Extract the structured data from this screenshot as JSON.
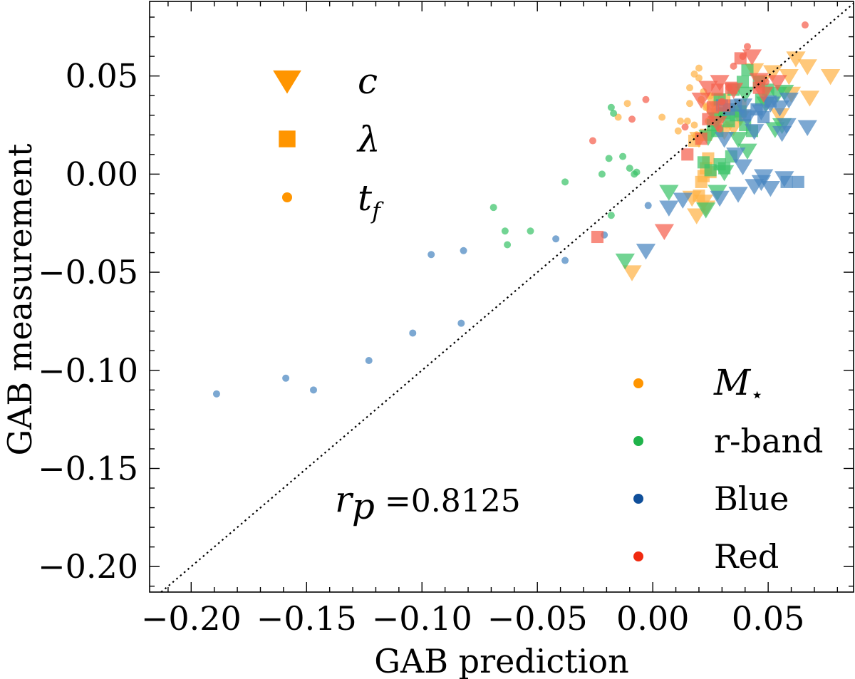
{
  "chart_data": {
    "type": "scatter",
    "title": "",
    "xlabel": "GAB prediction",
    "ylabel": "GAB measurement",
    "xlim": [
      -0.218,
      0.087
    ],
    "ylim": [
      -0.213,
      0.088
    ],
    "xticks": [
      -0.2,
      -0.15,
      -0.1,
      -0.05,
      0.0,
      0.05
    ],
    "yticks": [
      -0.2,
      -0.15,
      -0.1,
      -0.05,
      0.0,
      0.05
    ],
    "xtick_labels": [
      "−0.20",
      "−0.15",
      "−0.10",
      "−0.05",
      "0.00",
      "0.05"
    ],
    "ytick_labels": [
      "−0.20",
      "−0.15",
      "−0.10",
      "−0.05",
      "0.00",
      "0.05"
    ],
    "grid": false,
    "reference_line": {
      "type": "identity",
      "style": "dotted",
      "color": "#000000"
    },
    "annotation": {
      "prefix": "r",
      "subscript": "p",
      "text": " =0.8125",
      "value": 0.8125
    },
    "marker_legend": {
      "placement": "top-left",
      "entries": [
        {
          "marker": "triangle-down",
          "label": "c",
          "subscript": ""
        },
        {
          "marker": "square",
          "label": "λ",
          "subscript": ""
        },
        {
          "marker": "circle",
          "label": "t",
          "subscript": "f"
        }
      ]
    },
    "color_legend": {
      "placement": "bottom-right",
      "entries": [
        {
          "name": "mstar",
          "label": "M",
          "subscript": "⋆",
          "math": true,
          "color": "#ff9500"
        },
        {
          "name": "rband",
          "label": "r-band",
          "subscript": "",
          "math": false,
          "color": "#1fb34a"
        },
        {
          "name": "blue",
          "label": "Blue",
          "subscript": "",
          "math": false,
          "color": "#0f4f9a"
        },
        {
          "name": "red",
          "label": "Red",
          "subscript": "",
          "math": false,
          "color": "#f02a10"
        }
      ]
    },
    "colors": {
      "mstar": "#ffb347",
      "rband": "#3cc46a",
      "blue": "#4a86c0",
      "red": "#f5604d",
      "legend_marker": "#ff9500"
    },
    "series": [
      {
        "name": "M⋆ (t_f)",
        "marker": "circle",
        "color_key": "mstar",
        "points": [
          [
            -0.011,
            0.036
          ],
          [
            -0.015,
            0.029
          ],
          [
            0.004,
            0.029
          ],
          [
            0.016,
            0.036
          ],
          [
            0.018,
            0.051
          ],
          [
            0.02,
            0.054
          ],
          [
            0.022,
            0.042
          ],
          [
            0.027,
            0.036
          ],
          [
            0.024,
            0.027
          ],
          [
            0.018,
            0.025
          ],
          [
            0.015,
            0.027
          ],
          [
            0.011,
            0.022
          ],
          [
            0.029,
            0.031
          ],
          [
            0.028,
            0.033
          ],
          [
            0.025,
            0.04
          ],
          [
            0.03,
            0.029
          ],
          [
            0.016,
            0.044
          ],
          [
            0.02,
            0.049
          ],
          [
            0.012,
            0.027
          ],
          [
            0.034,
            0.032
          ],
          [
            0.032,
            0.025
          ],
          [
            0.021,
            0.038
          ],
          [
            0.023,
            0.034
          ],
          [
            0.019,
            0.02
          ],
          [
            0.025,
            0.028
          ],
          [
            0.046,
            0.046
          ],
          [
            0.049,
            0.043
          ]
        ]
      },
      {
        "name": "M⋆ (c)",
        "marker": "triangle-down",
        "color_key": "mstar",
        "points": [
          [
            -0.009,
            -0.05
          ],
          [
            0.019,
            -0.021
          ],
          [
            0.022,
            -0.014
          ],
          [
            0.017,
            -0.012
          ],
          [
            0.023,
            -0.017
          ],
          [
            0.02,
            0.018
          ],
          [
            0.029,
            0.03
          ],
          [
            0.038,
            0.029
          ],
          [
            0.044,
            0.053
          ],
          [
            0.052,
            0.052
          ],
          [
            0.062,
            0.059
          ],
          [
            0.067,
            0.055
          ],
          [
            0.077,
            0.05
          ],
          [
            0.068,
            0.039
          ],
          [
            0.059,
            0.05
          ],
          [
            0.047,
            0.047
          ],
          [
            0.026,
            0.038
          ],
          [
            0.031,
            0.022
          ],
          [
            0.025,
            0.033
          ],
          [
            0.035,
            0.024
          ],
          [
            0.055,
            0.03
          ],
          [
            0.06,
            0.041
          ]
        ]
      },
      {
        "name": "M⋆ (λ)",
        "marker": "square",
        "color_key": "mstar",
        "points": [
          [
            0.02,
            -0.011
          ],
          [
            0.021,
            -0.004
          ],
          [
            0.023,
            0.003
          ],
          [
            0.025,
            0.001
          ],
          [
            0.018,
            0.017
          ],
          [
            0.027,
            0.027
          ],
          [
            0.033,
            0.033
          ],
          [
            0.028,
            0.029
          ],
          [
            0.023,
            0.02
          ],
          [
            0.024,
            0.008
          ],
          [
            0.022,
            -0.001
          ],
          [
            0.031,
            0.038
          ],
          [
            0.038,
            0.035
          ]
        ]
      },
      {
        "name": "r-band (t_f)",
        "marker": "circle",
        "color_key": "rband",
        "points": [
          [
            -0.069,
            -0.017
          ],
          [
            -0.064,
            -0.029
          ],
          [
            -0.063,
            -0.036
          ],
          [
            -0.053,
            -0.029
          ],
          [
            -0.038,
            -0.004
          ],
          [
            -0.022,
            0.0
          ],
          [
            -0.018,
            -0.021
          ],
          [
            -0.019,
            0.008
          ],
          [
            -0.013,
            0.009
          ],
          [
            -0.01,
            0.003
          ],
          [
            -0.007,
            0.001
          ],
          [
            -0.008,
            0.0
          ],
          [
            -0.017,
            0.031
          ],
          [
            -0.018,
            0.034
          ]
        ]
      },
      {
        "name": "r-band (c)",
        "marker": "triangle-down",
        "color_key": "rband",
        "points": [
          [
            -0.012,
            -0.044
          ],
          [
            0.007,
            -0.009
          ],
          [
            0.023,
            -0.018
          ],
          [
            0.028,
            -0.009
          ],
          [
            0.024,
            0.019
          ],
          [
            0.028,
            0.028
          ],
          [
            0.04,
            0.041
          ],
          [
            0.049,
            0.036
          ],
          [
            0.054,
            0.041
          ],
          [
            0.057,
            0.042
          ],
          [
            0.056,
            0.025
          ],
          [
            0.053,
            0.023
          ],
          [
            0.037,
            0.018
          ],
          [
            0.041,
            0.012
          ],
          [
            0.031,
            0.001
          ]
        ]
      },
      {
        "name": "r-band (λ)",
        "marker": "square",
        "color_key": "rband",
        "points": [
          [
            0.022,
            0.006
          ],
          [
            0.025,
            0.002
          ],
          [
            0.029,
            0.005
          ],
          [
            0.031,
            0.003
          ],
          [
            0.034,
            0.009
          ],
          [
            0.028,
            0.022
          ],
          [
            0.033,
            0.027
          ],
          [
            0.038,
            0.032
          ],
          [
            0.039,
            0.047
          ],
          [
            0.041,
            0.053
          ],
          [
            0.046,
            0.047
          ],
          [
            0.04,
            0.025
          ],
          [
            0.043,
            0.022
          ],
          [
            0.036,
            0.03
          ],
          [
            0.031,
            0.031
          ],
          [
            0.026,
            0.025
          ],
          [
            0.035,
            0.043
          ],
          [
            0.047,
            0.038
          ],
          [
            0.05,
            0.043
          ],
          [
            0.029,
            0.038
          ]
        ]
      },
      {
        "name": "Blue (t_f)",
        "marker": "circle",
        "color_key": "blue",
        "points": [
          [
            -0.189,
            -0.112
          ],
          [
            -0.159,
            -0.104
          ],
          [
            -0.147,
            -0.11
          ],
          [
            -0.123,
            -0.095
          ],
          [
            -0.104,
            -0.081
          ],
          [
            -0.096,
            -0.041
          ],
          [
            -0.082,
            -0.039
          ],
          [
            -0.083,
            -0.076
          ],
          [
            -0.042,
            -0.033
          ],
          [
            -0.038,
            -0.044
          ],
          [
            -0.002,
            -0.016
          ],
          [
            -0.021,
            -0.031
          ]
        ]
      },
      {
        "name": "Blue (c)",
        "marker": "triangle-down",
        "color_key": "blue",
        "points": [
          [
            -0.003,
            -0.039
          ],
          [
            0.007,
            -0.017
          ],
          [
            0.013,
            -0.013
          ],
          [
            0.029,
            -0.012
          ],
          [
            0.037,
            -0.01
          ],
          [
            0.044,
            -0.006
          ],
          [
            0.047,
            -0.004
          ],
          [
            0.048,
            -0.001
          ],
          [
            0.039,
            0.004
          ],
          [
            0.051,
            -0.007
          ],
          [
            0.057,
            -0.002
          ],
          [
            0.044,
            0.022
          ],
          [
            0.031,
            0.018
          ],
          [
            0.036,
            0.01
          ],
          [
            0.056,
            0.021
          ],
          [
            0.058,
            0.025
          ],
          [
            0.067,
            0.024
          ],
          [
            0.055,
            0.034
          ],
          [
            0.039,
            0.035
          ],
          [
            0.041,
            0.029
          ],
          [
            0.047,
            0.032
          ],
          [
            0.051,
            0.036
          ],
          [
            0.059,
            0.038
          ]
        ]
      },
      {
        "name": "Blue (λ)",
        "marker": "square",
        "color_key": "blue",
        "points": [
          [
            0.03,
            0.035
          ],
          [
            0.033,
            0.033
          ],
          [
            0.036,
            0.035
          ],
          [
            0.04,
            0.03
          ],
          [
            0.045,
            0.033
          ],
          [
            0.048,
            0.029
          ],
          [
            0.051,
            0.037
          ],
          [
            0.058,
            -0.004
          ],
          [
            0.063,
            -0.004
          ]
        ]
      },
      {
        "name": "Red (t_f)",
        "marker": "circle",
        "color_key": "red",
        "points": [
          [
            -0.026,
            0.017
          ],
          [
            -0.009,
            0.028
          ],
          [
            -0.003,
            0.038
          ],
          [
            0.014,
            0.024
          ],
          [
            0.029,
            0.023
          ],
          [
            0.033,
            0.044
          ],
          [
            0.035,
            0.055
          ],
          [
            0.039,
            0.06
          ],
          [
            0.041,
            0.065
          ],
          [
            0.049,
            0.047
          ],
          [
            0.066,
            0.076
          ],
          [
            0.03,
            0.037
          ]
        ]
      },
      {
        "name": "Red (c)",
        "marker": "triangle-down",
        "color_key": "red",
        "points": [
          [
            0.005,
            -0.029
          ],
          [
            0.021,
            0.038
          ],
          [
            0.024,
            0.044
          ],
          [
            0.029,
            0.047
          ],
          [
            0.035,
            0.043
          ],
          [
            0.043,
            0.06
          ],
          [
            0.046,
            0.048
          ],
          [
            0.048,
            0.041
          ],
          [
            0.054,
            0.047
          ],
          [
            0.028,
            0.026
          ]
        ]
      },
      {
        "name": "Red (λ)",
        "marker": "square",
        "color_key": "red",
        "points": [
          [
            -0.024,
            -0.032
          ],
          [
            0.015,
            0.01
          ],
          [
            0.024,
            0.028
          ],
          [
            0.026,
            0.034
          ],
          [
            0.028,
            0.043
          ],
          [
            0.031,
            0.035
          ],
          [
            0.034,
            0.044
          ],
          [
            0.038,
            0.059
          ],
          [
            0.046,
            0.044
          ],
          [
            0.021,
            0.018
          ]
        ]
      }
    ]
  }
}
